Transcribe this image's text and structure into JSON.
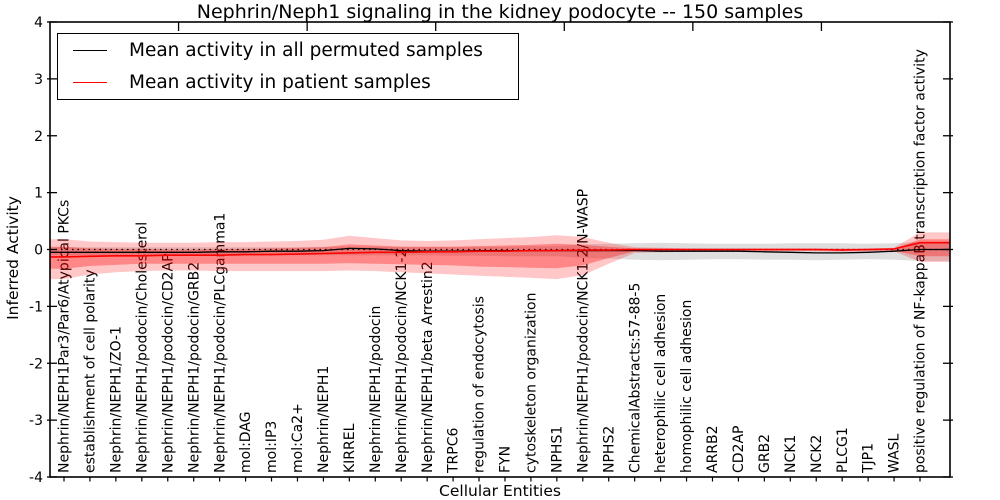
{
  "title": "Nephrin/Neph1 signaling in the kidney podocyte -- 150 samples",
  "legend": {
    "items": [
      {
        "label": "Mean activity in all permuted samples",
        "color": "#000000"
      },
      {
        "label": "Mean activity in patient samples",
        "color": "#ff0000"
      }
    ]
  },
  "axes": {
    "x_label": "Cellular Entities",
    "y_label": "Inferred Activity",
    "y_ticks": [
      -4,
      -3,
      -2,
      -1,
      0,
      1,
      2,
      3,
      4
    ],
    "ylim": [
      -4,
      4
    ]
  },
  "chart_data": {
    "type": "line",
    "title": "Nephrin/Neph1 signaling in the kidney podocyte -- 150 samples",
    "xlabel": "Cellular Entities",
    "ylabel": "Inferred Activity",
    "ylim": [
      -4,
      4
    ],
    "yticks": [
      -4,
      -3,
      -2,
      -1,
      0,
      1,
      2,
      3,
      4
    ],
    "grid": false,
    "legend_position": "upper left",
    "zero_line": {
      "y": 0,
      "style": "dotted",
      "color": "#000000"
    },
    "categories": [
      "Nephrin/NEPH1Par3/Par6/Atypical PKCs",
      "establishment of cell polarity",
      "Nephrin/NEPH1/ZO-1",
      "Nephrin/NEPH1/podocin/Cholesterol",
      "Nephrin/NEPH1/podocin/CD2AP",
      "Nephrin/NEPH1/podocin/GRB2",
      "Nephrin/NEPH1/podocin/PLCgamma1",
      "mol:DAG",
      "mol:IP3",
      "mol:Ca2+",
      "Nephrin/NEPH1",
      "KIRREL",
      "Nephrin/NEPH1/podocin",
      "Nephrin/NEPH1/podocin/NCK1-2",
      "Nephrin/NEPH1/beta Arrestin2",
      "TRPC6",
      "regulation of endocytosis",
      "FYN",
      "cytoskeleton organization",
      "NPHS1",
      "Nephrin/NEPH1/podocin/NCK1-2/N-WASP",
      "NPHS2",
      "ChemicalAbstracts:57-88-5",
      "heterophilic cell adhesion",
      "homophilic cell adhesion",
      "ARRB2",
      "CD2AP",
      "GRB2",
      "NCK1",
      "NCK2",
      "PLCG1",
      "TJP1",
      "WASL",
      "positive regulation of NF-kappaB transcription factor activity"
    ],
    "series": [
      {
        "name": "Mean activity in all permuted samples",
        "color": "#000000",
        "width": 1.3,
        "values": [
          -0.05,
          -0.05,
          -0.05,
          -0.05,
          -0.05,
          -0.05,
          -0.04,
          -0.04,
          -0.03,
          -0.03,
          -0.02,
          0.02,
          0.01,
          -0.02,
          -0.03,
          -0.03,
          -0.02,
          -0.02,
          -0.02,
          -0.02,
          -0.02,
          -0.02,
          -0.02,
          -0.03,
          -0.03,
          -0.03,
          -0.03,
          -0.04,
          -0.05,
          -0.06,
          -0.06,
          -0.05,
          -0.03,
          0.0
        ]
      },
      {
        "name": "Mean activity in patient samples",
        "color": "#ff0000",
        "width": 1.6,
        "values": [
          -0.13,
          -0.12,
          -0.11,
          -0.11,
          -0.1,
          -0.1,
          -0.1,
          -0.09,
          -0.09,
          -0.08,
          -0.07,
          -0.06,
          -0.05,
          -0.05,
          -0.04,
          -0.04,
          -0.03,
          -0.03,
          -0.02,
          -0.02,
          -0.01,
          -0.01,
          0.0,
          0.0,
          0.0,
          0.0,
          0.0,
          0.0,
          0.0,
          0.0,
          -0.01,
          0.0,
          0.01,
          0.12
        ]
      }
    ],
    "bands": [
      {
        "name": "permuted-sample-range",
        "color": "#000000",
        "opacity": 0.13,
        "hi": [
          0.04,
          0.04,
          0.04,
          0.04,
          0.04,
          0.04,
          0.04,
          0.04,
          0.04,
          0.04,
          0.05,
          0.05,
          0.05,
          0.05,
          0.05,
          0.05,
          0.05,
          0.05,
          0.06,
          0.06,
          0.09,
          0.1,
          0.11,
          0.12,
          0.11,
          0.1,
          0.1,
          0.1,
          0.11,
          0.11,
          0.11,
          0.1,
          0.11,
          0.13
        ],
        "lo": [
          -0.1,
          -0.1,
          -0.1,
          -0.1,
          -0.1,
          -0.1,
          -0.1,
          -0.1,
          -0.1,
          -0.1,
          -0.1,
          -0.1,
          -0.1,
          -0.1,
          -0.1,
          -0.11,
          -0.11,
          -0.12,
          -0.12,
          -0.12,
          -0.15,
          -0.16,
          -0.18,
          -0.19,
          -0.18,
          -0.17,
          -0.17,
          -0.18,
          -0.18,
          -0.19,
          -0.18,
          -0.17,
          -0.18,
          -0.2
        ]
      },
      {
        "name": "patient-sample-range-outer",
        "color": "#ff0000",
        "opacity": 0.22,
        "hi": [
          0.18,
          0.14,
          0.13,
          0.12,
          0.12,
          0.12,
          0.13,
          0.13,
          0.14,
          0.15,
          0.17,
          0.24,
          0.2,
          0.16,
          0.15,
          0.16,
          0.18,
          0.2,
          0.22,
          0.25,
          0.22,
          0.12,
          0.04,
          0.03,
          0.02,
          0.02,
          0.02,
          0.02,
          0.02,
          0.02,
          0.02,
          0.02,
          0.03,
          0.3
        ],
        "lo": [
          -0.52,
          -0.44,
          -0.4,
          -0.38,
          -0.37,
          -0.37,
          -0.38,
          -0.38,
          -0.38,
          -0.38,
          -0.38,
          -0.37,
          -0.38,
          -0.4,
          -0.42,
          -0.44,
          -0.46,
          -0.48,
          -0.5,
          -0.52,
          -0.45,
          -0.25,
          -0.06,
          -0.05,
          -0.04,
          -0.03,
          -0.03,
          -0.03,
          -0.03,
          -0.03,
          -0.04,
          -0.03,
          -0.03,
          -0.22
        ]
      },
      {
        "name": "patient-sample-range-inner",
        "color": "#ff0000",
        "opacity": 0.32,
        "hi": [
          0.05,
          0.02,
          0.01,
          0.01,
          0.0,
          0.0,
          0.01,
          0.01,
          0.02,
          0.03,
          0.04,
          0.09,
          0.07,
          0.05,
          0.05,
          0.05,
          0.06,
          0.07,
          0.08,
          0.1,
          0.08,
          0.05,
          0.02,
          0.01,
          0.01,
          0.01,
          0.01,
          0.01,
          0.01,
          0.01,
          0.01,
          0.01,
          0.01,
          0.18
        ],
        "lo": [
          -0.34,
          -0.29,
          -0.27,
          -0.25,
          -0.25,
          -0.25,
          -0.25,
          -0.25,
          -0.25,
          -0.25,
          -0.25,
          -0.24,
          -0.25,
          -0.26,
          -0.27,
          -0.28,
          -0.3,
          -0.31,
          -0.32,
          -0.33,
          -0.28,
          -0.15,
          -0.03,
          -0.02,
          -0.02,
          -0.02,
          -0.02,
          -0.02,
          -0.02,
          -0.02,
          -0.02,
          -0.02,
          -0.02,
          -0.12
        ]
      }
    ]
  }
}
